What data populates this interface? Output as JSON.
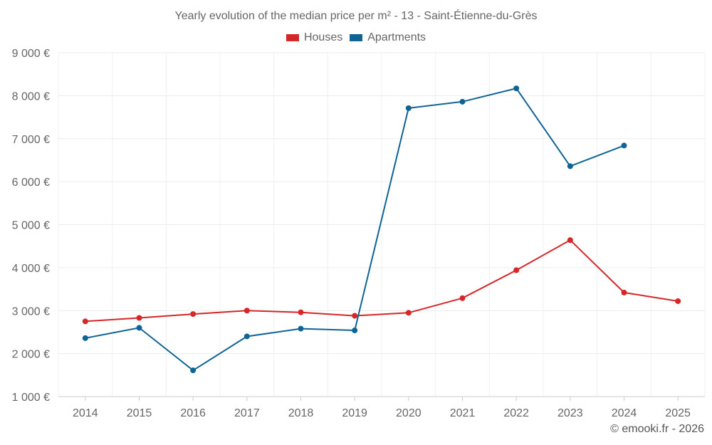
{
  "chart_data": {
    "type": "line",
    "title": "Yearly evolution of the median price per m² - 13 - Saint-Étienne-du-Grès",
    "xlabel": "",
    "ylabel": "",
    "categories": [
      "2014",
      "2015",
      "2016",
      "2017",
      "2018",
      "2019",
      "2020",
      "2021",
      "2022",
      "2023",
      "2024",
      "2025"
    ],
    "ylim": [
      1000,
      9000
    ],
    "yticks": [
      {
        "value": 1000,
        "label": "1 000 €"
      },
      {
        "value": 2000,
        "label": "2 000 €"
      },
      {
        "value": 3000,
        "label": "3 000 €"
      },
      {
        "value": 4000,
        "label": "4 000 €"
      },
      {
        "value": 5000,
        "label": "5 000 €"
      },
      {
        "value": 6000,
        "label": "6 000 €"
      },
      {
        "value": 7000,
        "label": "7 000 €"
      },
      {
        "value": 8000,
        "label": "8 000 €"
      },
      {
        "value": 9000,
        "label": "9 000 €"
      }
    ],
    "grid": true,
    "legend_position": "top-center",
    "series": [
      {
        "name": "Houses",
        "color": "#d62728",
        "values": [
          2750,
          2830,
          2920,
          3000,
          2960,
          2880,
          2950,
          3290,
          3940,
          4640,
          3420,
          3220
        ]
      },
      {
        "name": "Apartments",
        "color": "#0f6496",
        "values": [
          2360,
          2600,
          1610,
          2400,
          2580,
          2540,
          7710,
          7860,
          8170,
          6360,
          6840,
          null
        ]
      }
    ]
  },
  "credit": "© emooki.fr - 2026"
}
